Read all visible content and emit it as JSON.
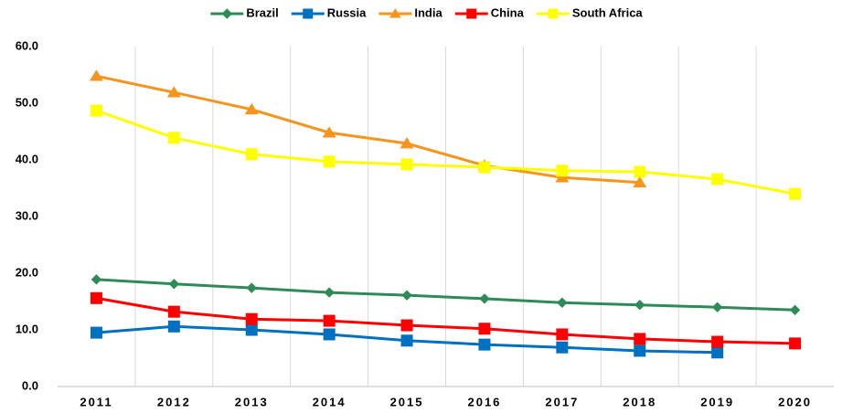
{
  "chart_data": {
    "type": "line",
    "categories": [
      "2011",
      "2012",
      "2013",
      "2014",
      "2015",
      "2016",
      "2017",
      "2018",
      "2019",
      "2020"
    ],
    "series": [
      {
        "name": "Brazil",
        "color": "#2e8b57",
        "marker": "diamond",
        "values": [
          18.9,
          18.1,
          17.4,
          16.6,
          16.1,
          15.5,
          14.8,
          14.4,
          14.0,
          13.5
        ]
      },
      {
        "name": "Russia",
        "color": "#0070c0",
        "marker": "square",
        "values": [
          9.5,
          10.6,
          10.0,
          9.2,
          8.1,
          7.4,
          6.9,
          6.3,
          6.0,
          null
        ]
      },
      {
        "name": "India",
        "color": "#f7941d",
        "marker": "triangle",
        "values": [
          54.8,
          51.9,
          48.9,
          44.8,
          42.9,
          39.0,
          36.9,
          36.0,
          null,
          null
        ]
      },
      {
        "name": "China",
        "color": "#ff0000",
        "marker": "square",
        "values": [
          15.6,
          13.2,
          11.9,
          11.6,
          10.8,
          10.2,
          9.2,
          8.4,
          7.9,
          7.6
        ]
      },
      {
        "name": "South Africa",
        "color": "#ffff00",
        "marker": "square",
        "values": [
          48.7,
          43.9,
          41.0,
          39.7,
          39.2,
          38.7,
          38.1,
          37.9,
          36.6,
          34.0
        ]
      }
    ],
    "ylim": [
      0,
      60
    ],
    "yticks": [
      {
        "value": 0,
        "label": "0.0"
      },
      {
        "value": 10,
        "label": "10.0"
      },
      {
        "value": 20,
        "label": "20.0"
      },
      {
        "value": 30,
        "label": "30.0"
      },
      {
        "value": 40,
        "label": "40.0"
      },
      {
        "value": 50,
        "label": "50.0"
      },
      {
        "value": 60,
        "label": "60.0"
      }
    ],
    "legend": "top"
  }
}
